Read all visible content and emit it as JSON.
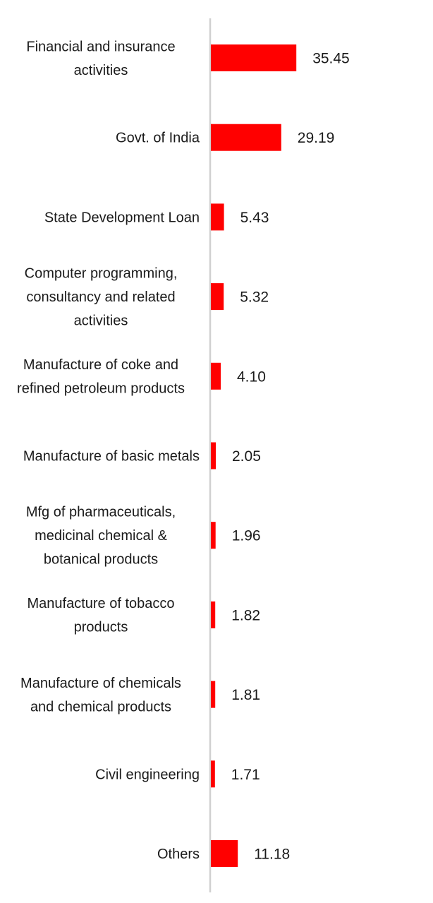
{
  "chart_data": {
    "type": "bar",
    "orientation": "horizontal",
    "categories": [
      [
        "Financial and insurance",
        "activities"
      ],
      [
        "Govt. of India"
      ],
      [
        "State Development Loan"
      ],
      [
        "Computer programming,",
        "consultancy and related",
        "activities"
      ],
      [
        "Manufacture of coke and",
        "refined petroleum products"
      ],
      [
        "Manufacture of basic metals"
      ],
      [
        "Mfg of pharmaceuticals,",
        "medicinal chemical &",
        "botanical products"
      ],
      [
        "Manufacture of tobacco",
        "products"
      ],
      [
        "Manufacture of chemicals",
        "and chemical products"
      ],
      [
        "Civil engineering"
      ],
      [
        "Others"
      ]
    ],
    "values": [
      35.45,
      29.19,
      5.43,
      5.32,
      4.1,
      2.05,
      1.96,
      1.82,
      1.81,
      1.71,
      11.18
    ],
    "value_labels": [
      "35.45",
      "29.19",
      "5.43",
      "5.32",
      "4.10",
      "2.05",
      "1.96",
      "1.82",
      "1.81",
      "1.71",
      "11.18"
    ],
    "title": "",
    "xlabel": "",
    "ylabel": "",
    "xlim": [
      0,
      100
    ],
    "grid": false,
    "legend": "none",
    "colors": {
      "bar": "#ff0000",
      "axis": "#d0d0d0",
      "text": "#1a1a1a"
    }
  }
}
